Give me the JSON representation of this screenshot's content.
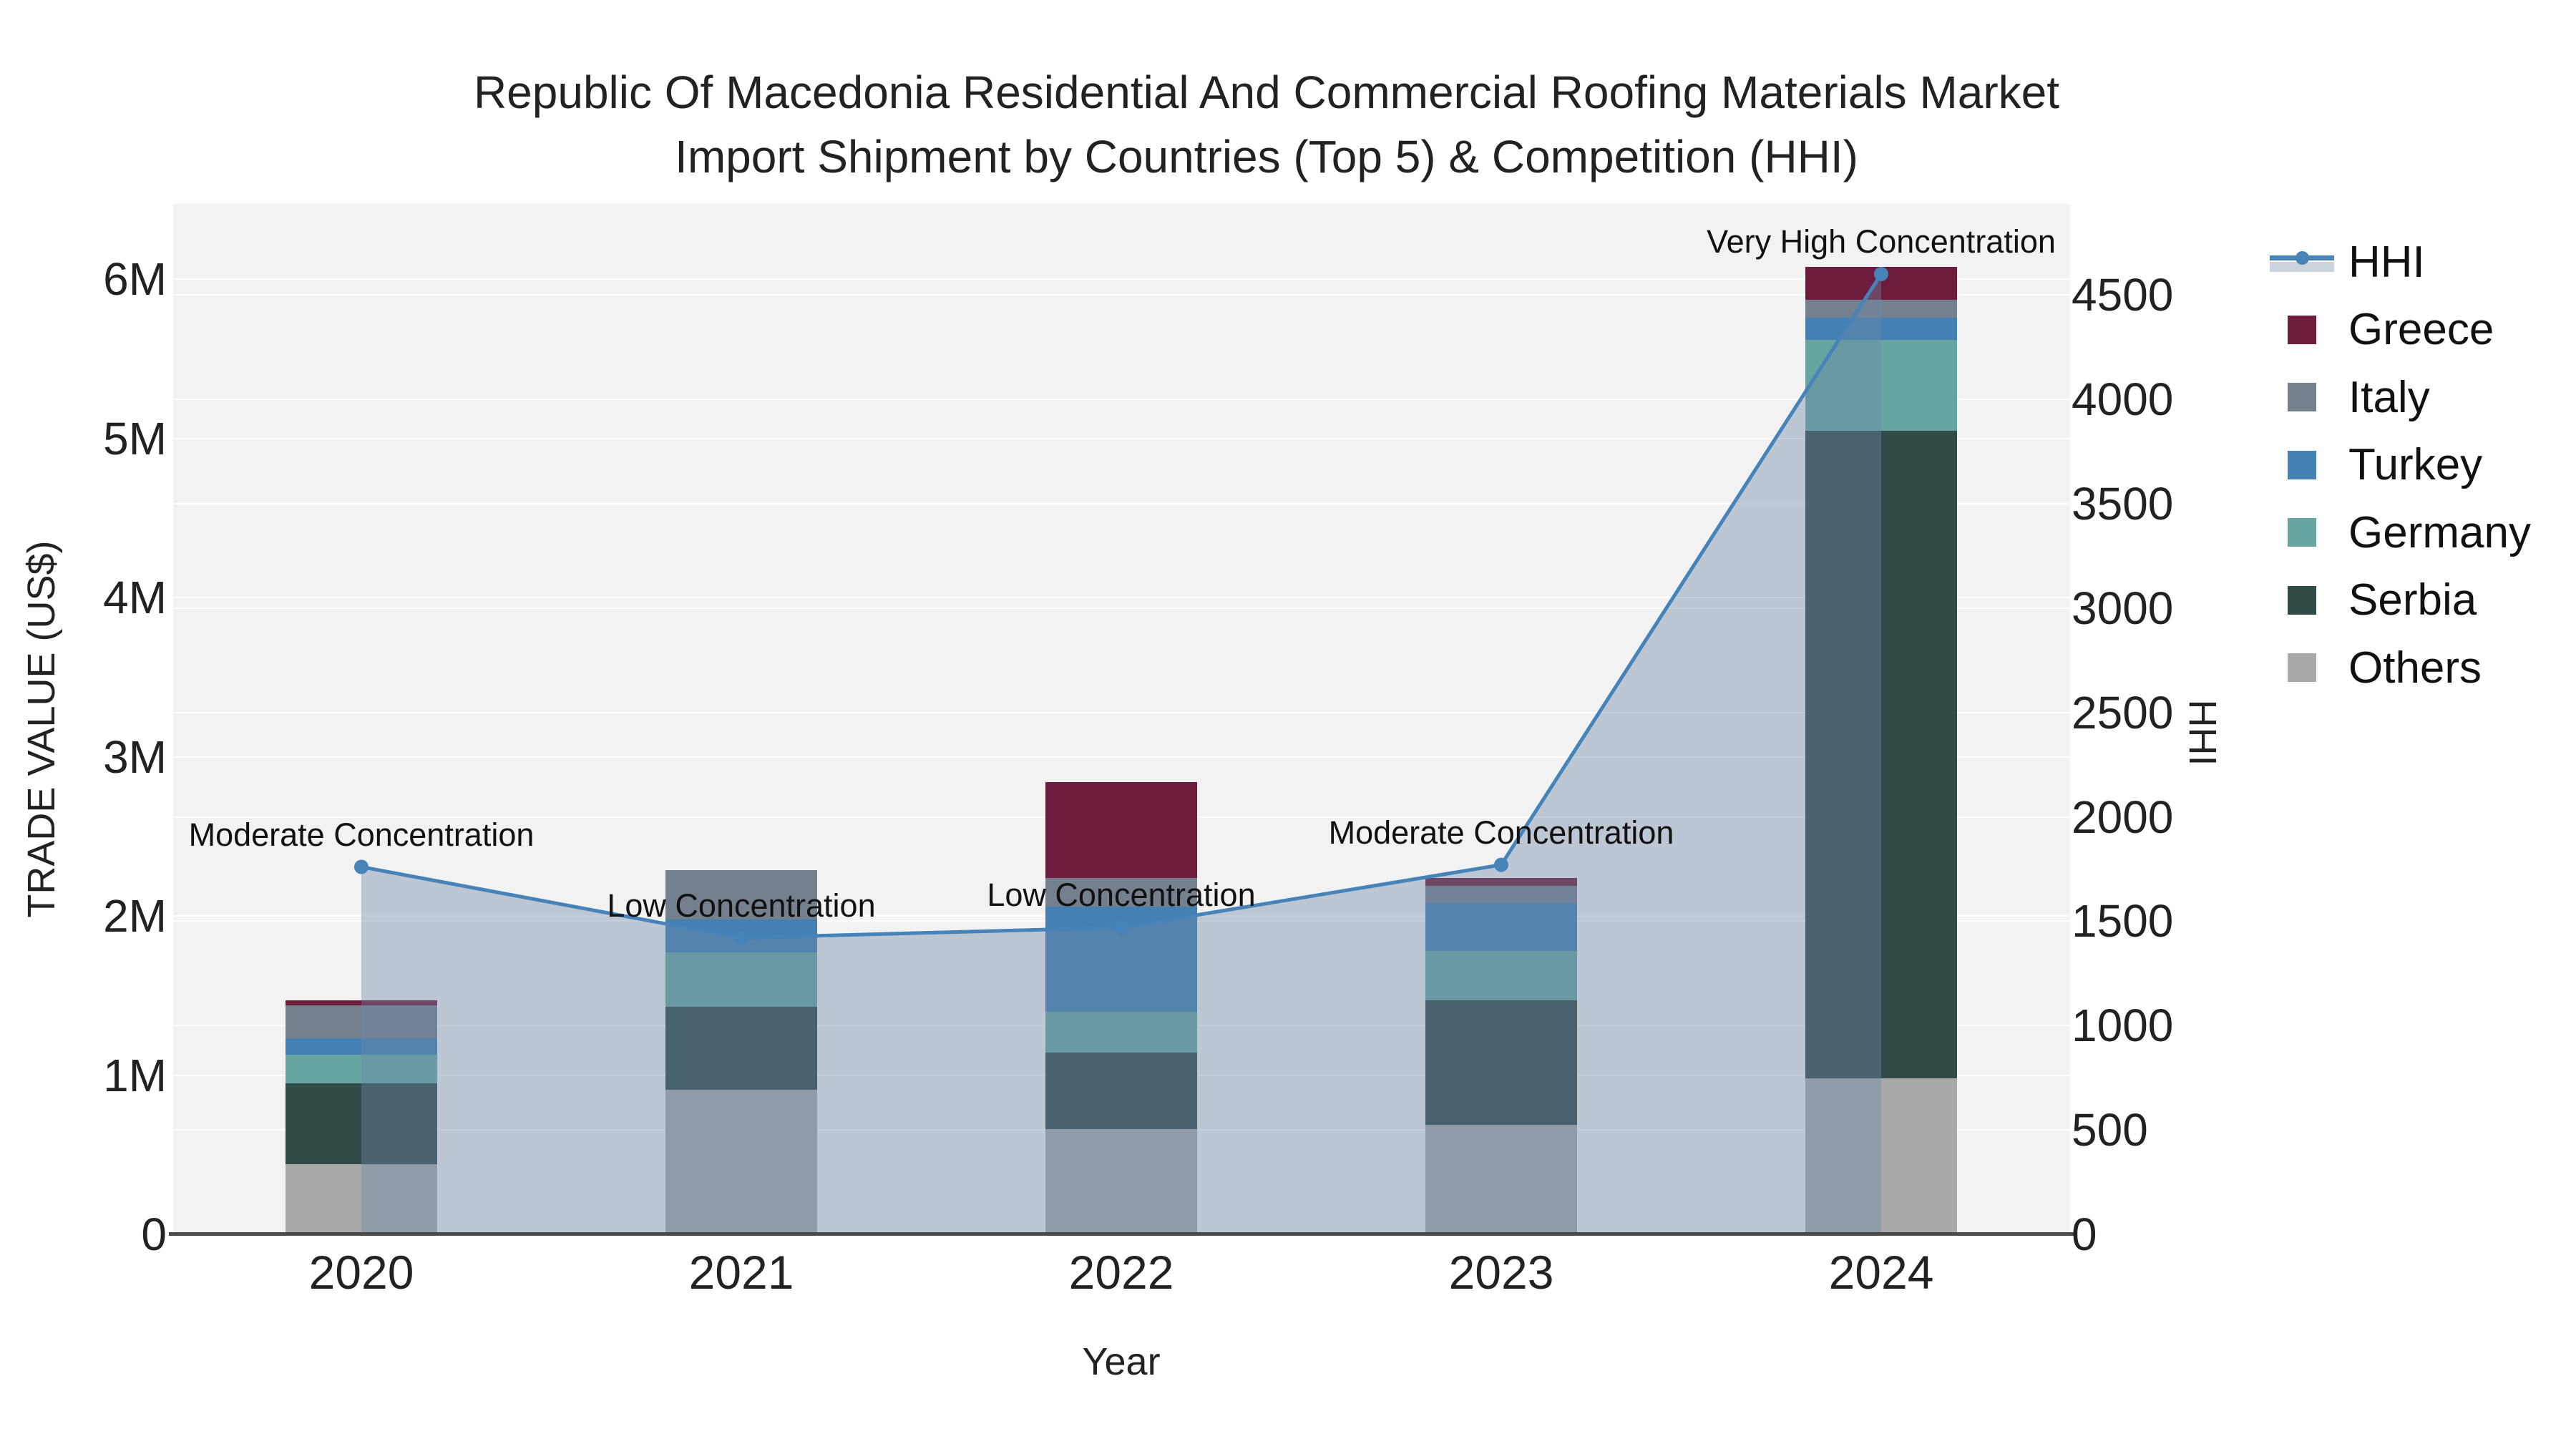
{
  "title": {
    "line1": "Republic Of Macedonia Residential And Commercial Roofing Materials Market",
    "line2": "Import Shipment by Countries (Top 5) & Competition (HHI)"
  },
  "axes": {
    "x": {
      "title": "Year"
    },
    "y_left": {
      "title": "TRADE VALUE (US$)",
      "tick_labels": [
        "0",
        "1M",
        "2M",
        "3M",
        "4M",
        "5M",
        "6M"
      ],
      "tick_values_m": [
        0,
        1,
        2,
        3,
        4,
        5,
        6
      ],
      "range_m": [
        0,
        6.474
      ]
    },
    "y_right": {
      "title": "HHI",
      "tick_values": [
        0,
        500,
        1000,
        1500,
        2000,
        2500,
        3000,
        3500,
        4000,
        4500
      ],
      "range": [
        0,
        4936
      ]
    }
  },
  "legend": {
    "items": [
      {
        "label": "HHI",
        "type": "line",
        "color_key": "hhi"
      },
      {
        "label": "Greece",
        "type": "swatch",
        "color_key": "greece"
      },
      {
        "label": "Italy",
        "type": "swatch",
        "color_key": "italy"
      },
      {
        "label": "Turkey",
        "type": "swatch",
        "color_key": "turkey"
      },
      {
        "label": "Germany",
        "type": "swatch",
        "color_key": "germany"
      },
      {
        "label": "Serbia",
        "type": "swatch",
        "color_key": "serbia"
      },
      {
        "label": "Others",
        "type": "swatch",
        "color_key": "others"
      }
    ]
  },
  "chart_data": {
    "type": "bar",
    "subtype": "stacked-bar with line on secondary axis",
    "categories": [
      "2020",
      "2021",
      "2022",
      "2023",
      "2024"
    ],
    "unit": "US$ millions (left axis), HHI index (right axis)",
    "stack_order_bottom_to_top": [
      "Others",
      "Serbia",
      "Germany",
      "Turkey",
      "Italy",
      "Greece"
    ],
    "series": [
      {
        "name": "Greece",
        "color_key": "greece",
        "values_musd": [
          0.03,
          0,
          0.6,
          0.05,
          0.21
        ]
      },
      {
        "name": "Italy",
        "color_key": "italy",
        "values_musd": [
          0.21,
          0.31,
          0.18,
          0.11,
          0.11
        ]
      },
      {
        "name": "Turkey",
        "color_key": "turkey",
        "values_musd": [
          0.1,
          0.21,
          0.66,
          0.3,
          0.14
        ]
      },
      {
        "name": "Germany",
        "color_key": "germany",
        "values_musd": [
          0.18,
          0.34,
          0.26,
          0.31,
          0.57
        ]
      },
      {
        "name": "Serbia",
        "color_key": "serbia",
        "values_musd": [
          0.51,
          0.52,
          0.48,
          0.78,
          4.07
        ]
      },
      {
        "name": "Others",
        "color_key": "others",
        "values_musd": [
          0.44,
          0.91,
          0.66,
          0.69,
          0.98
        ]
      }
    ],
    "line_series": {
      "name": "HHI",
      "axis": "right",
      "values": [
        1760,
        1420,
        1470,
        1770,
        4600
      ]
    },
    "annotations": [
      {
        "category": "2020",
        "text": "Moderate Concentration"
      },
      {
        "category": "2021",
        "text": "Low Concentration"
      },
      {
        "category": "2022",
        "text": "Low Concentration"
      },
      {
        "category": "2023",
        "text": "Moderate Concentration"
      },
      {
        "category": "2024",
        "text": "Very High Concentration"
      }
    ],
    "legend_position": "right",
    "grid": true
  },
  "colors": {
    "greece": "#6e1c3d",
    "italy": "#75808f",
    "turkey": "#4480b4",
    "germany": "#66a5a2",
    "serbia": "#2f4c48",
    "others": "#a9a9a9",
    "hhi": "#4583b8",
    "hhi_area_fill": "rgba(110,135,165,0.40)",
    "hhi_legend_band": "#ccd3da",
    "plot_bg": "#f2f2f2",
    "grid": "rgba(255,255,255,0.9)",
    "axis_line": "#4a4a4a"
  }
}
